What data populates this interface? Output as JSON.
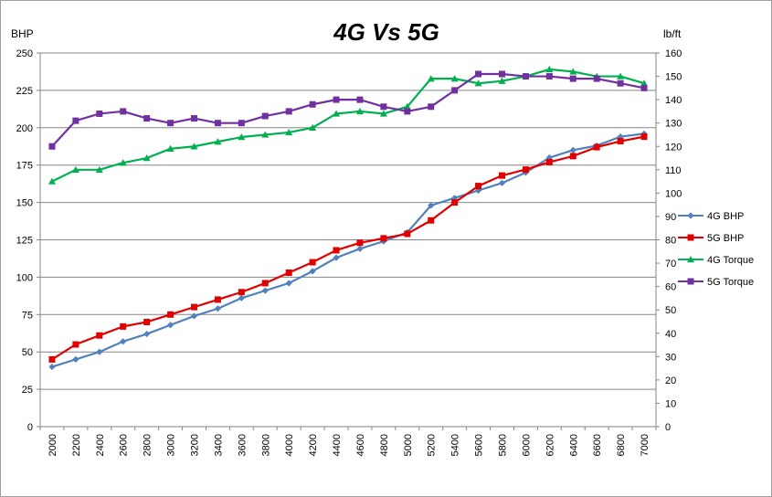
{
  "chart_data": {
    "type": "line",
    "title": "4G Vs 5G",
    "left_axis_label": "BHP",
    "right_axis_label": "lb/ft",
    "ylim_left": [
      0,
      250
    ],
    "ylim_right": [
      0,
      160
    ],
    "left_ticks": [
      "0",
      "25",
      "50",
      "75",
      "100",
      "125",
      "150",
      "175",
      "200",
      "225",
      "250"
    ],
    "right_ticks": [
      "0",
      "10",
      "20",
      "30",
      "40",
      "50",
      "60",
      "70",
      "80",
      "90",
      "100",
      "110",
      "120",
      "130",
      "140",
      "150",
      "160"
    ],
    "grid": true,
    "legend_position": "right",
    "x": [
      "2000",
      "2200",
      "2400",
      "2600",
      "2800",
      "3000",
      "3200",
      "3400",
      "3600",
      "3800",
      "4000",
      "4200",
      "4400",
      "4600",
      "4800",
      "5000",
      "5200",
      "5400",
      "5600",
      "5800",
      "6000",
      "6200",
      "6400",
      "6600",
      "6800",
      "7000"
    ],
    "series": [
      {
        "name": "4G BHP",
        "axis": "left",
        "color": "#4f81bd",
        "marker": "diamond",
        "values": [
          40,
          45,
          50,
          57,
          62,
          68,
          74,
          79,
          86,
          91,
          96,
          104,
          113,
          119,
          124,
          130,
          148,
          153,
          158,
          163,
          170,
          180,
          185,
          188,
          194,
          196
        ]
      },
      {
        "name": "5G BHP",
        "axis": "left",
        "color": "#e00000",
        "marker": "square",
        "values": [
          45,
          55,
          61,
          67,
          70,
          75,
          80,
          85,
          90,
          96,
          103,
          110,
          118,
          123,
          126,
          129,
          138,
          150,
          161,
          168,
          172,
          177,
          181,
          187,
          191,
          194
        ]
      },
      {
        "name": "4G Torque",
        "axis": "right",
        "color": "#00b050",
        "marker": "triangle",
        "values": [
          105,
          110,
          110,
          113,
          115,
          119,
          120,
          122,
          124,
          125,
          126,
          128,
          134,
          135,
          134,
          137,
          149,
          149,
          147,
          148,
          150,
          153,
          152,
          150,
          150,
          147
        ]
      },
      {
        "name": "5G Torque",
        "axis": "right",
        "color": "#7030a0",
        "marker": "square",
        "values": [
          120,
          131,
          134,
          135,
          132,
          130,
          132,
          130,
          130,
          133,
          135,
          138,
          140,
          140,
          137,
          135,
          137,
          144,
          151,
          151,
          150,
          150,
          149,
          149,
          147,
          145
        ]
      }
    ]
  }
}
